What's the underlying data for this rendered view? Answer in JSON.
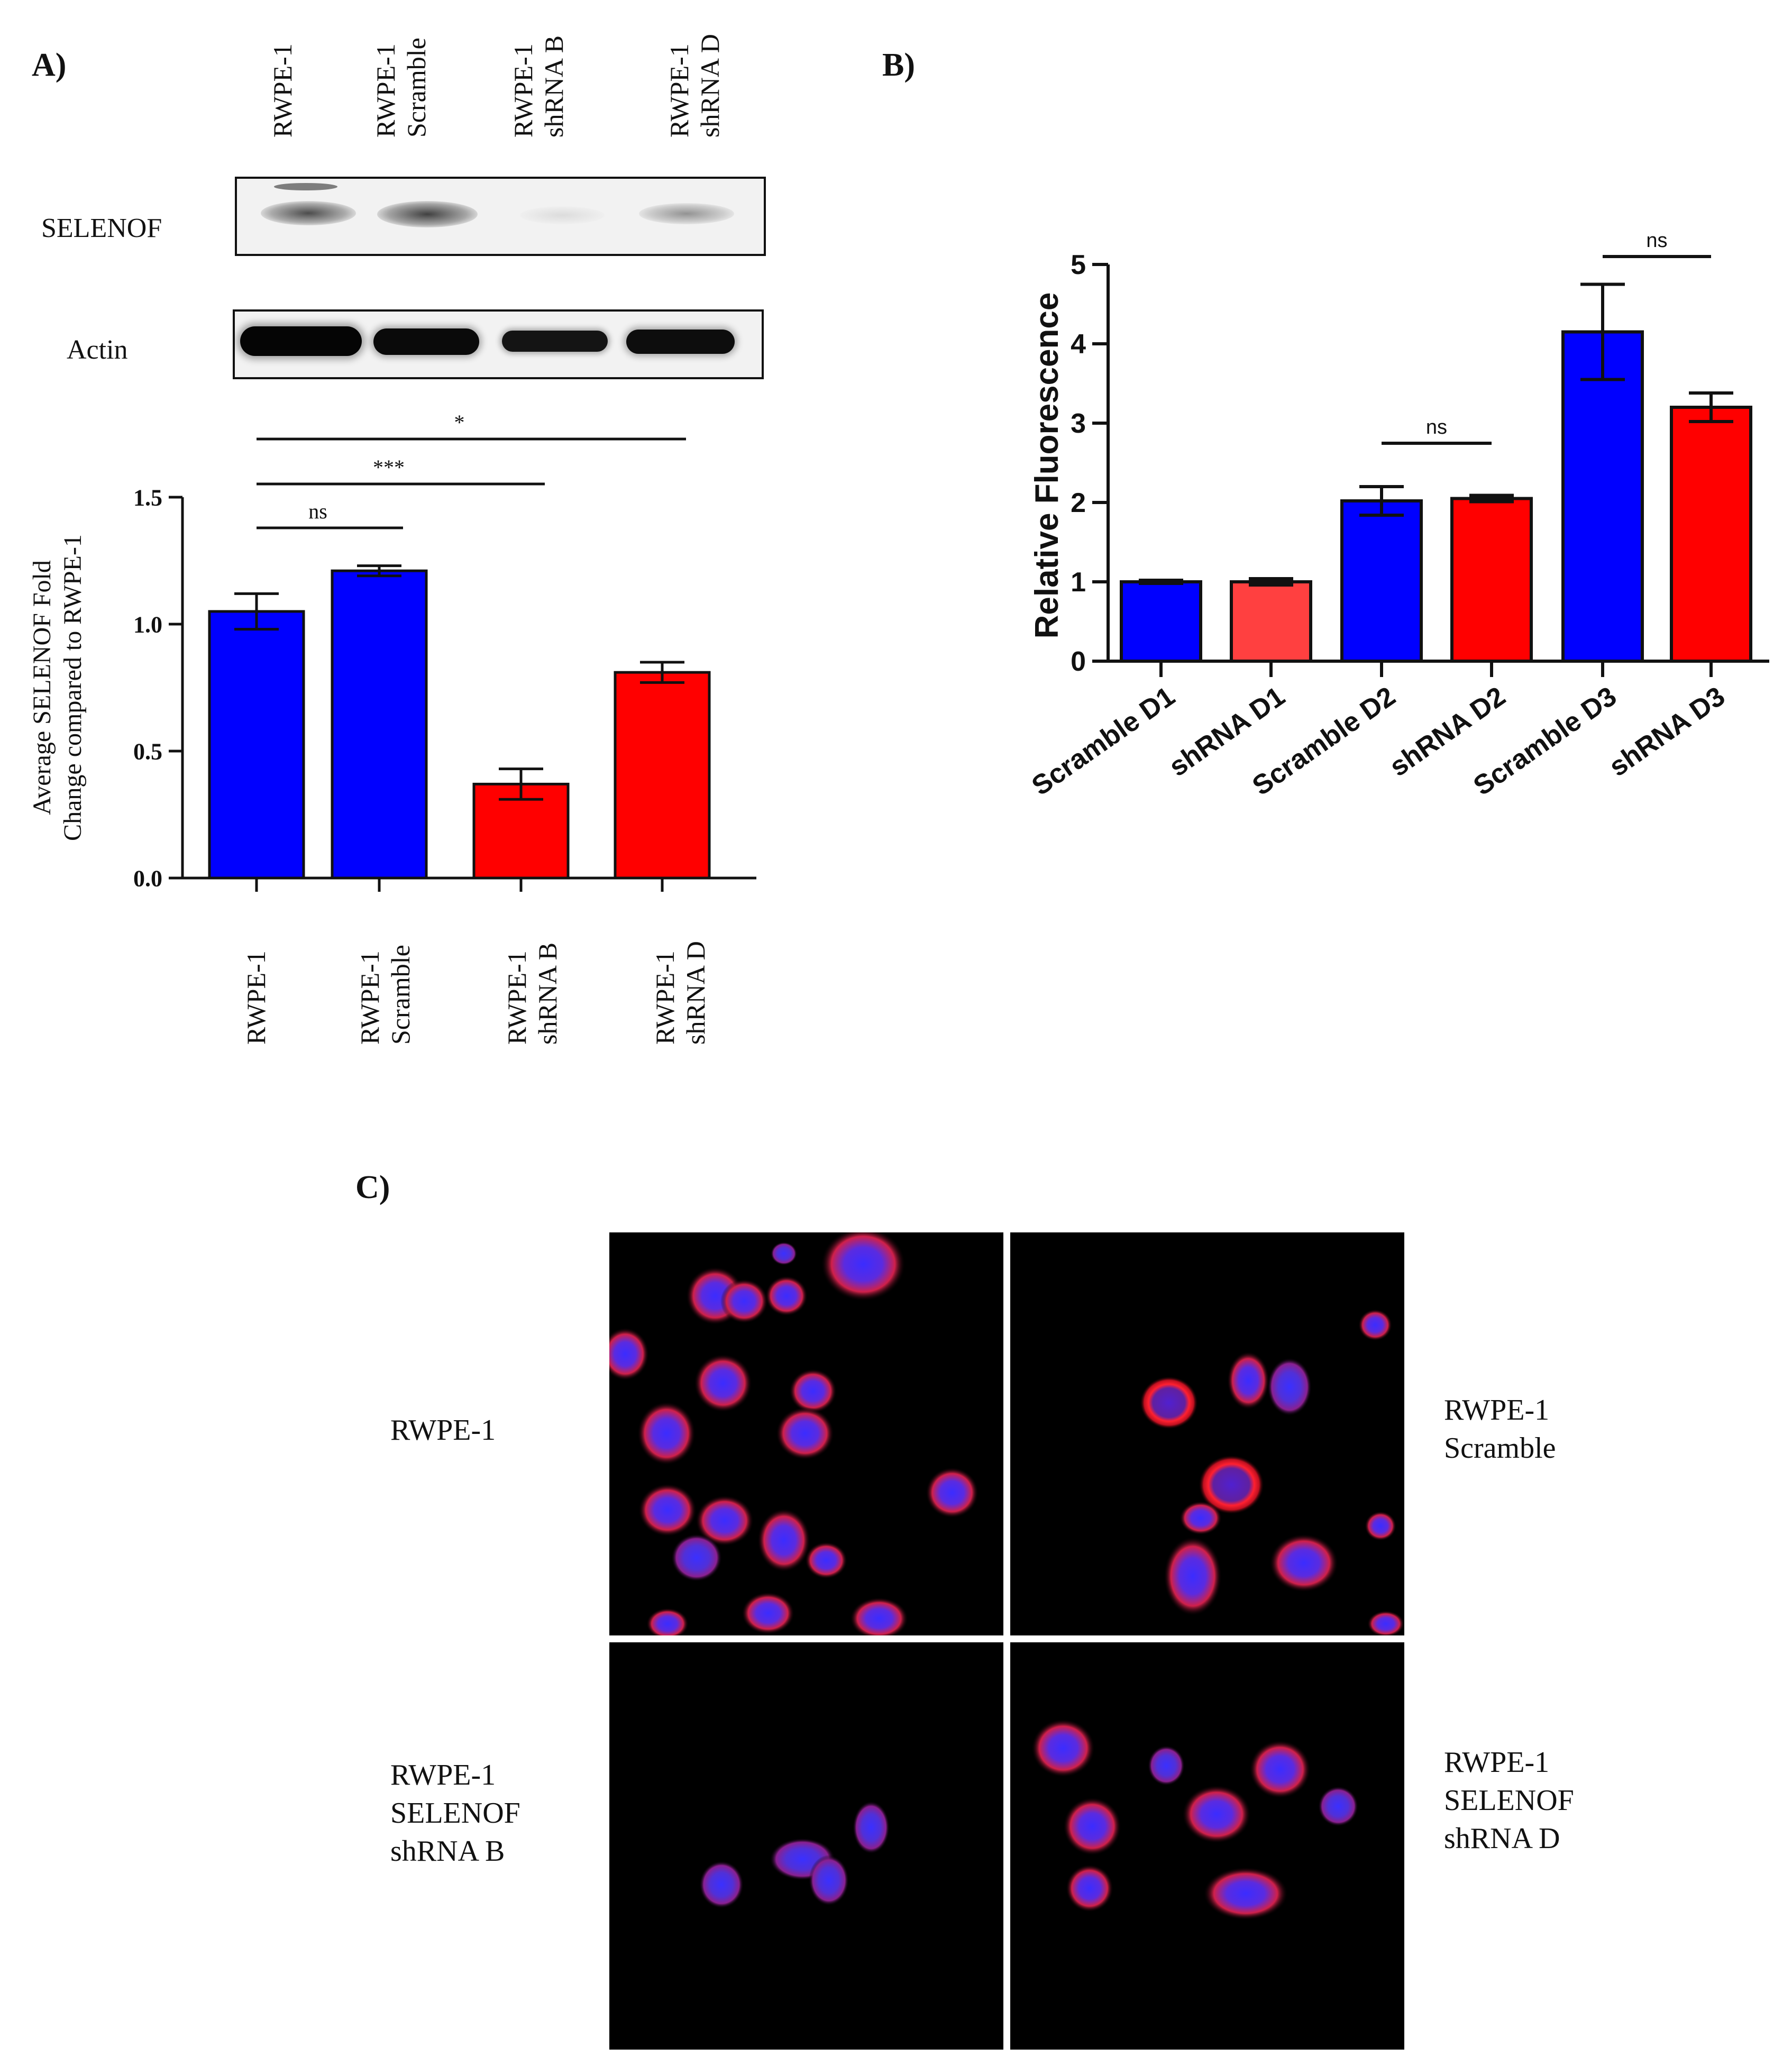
{
  "panels": {
    "a": "A)",
    "b": "B)",
    "c": "C)"
  },
  "western_blot": {
    "lanes": [
      {
        "line1": "RWPE-1",
        "line2": ""
      },
      {
        "line1": "RWPE-1",
        "line2": "Scramble"
      },
      {
        "line1": "RWPE-1",
        "line2": "shRNA  B"
      },
      {
        "line1": "RWPE-1",
        "line2": "shRNA  D"
      }
    ],
    "rows": [
      {
        "label": "SELENOF",
        "band_intensity": [
          0.75,
          0.8,
          0.12,
          0.45
        ]
      },
      {
        "label": "Actin",
        "band_intensity": [
          1.0,
          0.95,
          0.85,
          0.9
        ]
      }
    ]
  },
  "chart_data": [
    {
      "type": "bar",
      "categories": [
        "RWPE-1",
        "RWPE-1 Scramble",
        "RWPE-1 shRNA B",
        "RWPE-1 shRNA D"
      ],
      "tick_labels": [
        {
          "line1": "RWPE-1",
          "line2": ""
        },
        {
          "line1": "RWPE-1",
          "line2": "Scramble"
        },
        {
          "line1": "RWPE-1",
          "line2": "shRNA B"
        },
        {
          "line1": "RWPE-1",
          "line2": "shRNA D"
        }
      ],
      "values": [
        1.05,
        1.21,
        0.37,
        0.81
      ],
      "errors": [
        0.07,
        0.02,
        0.06,
        0.04
      ],
      "colors": [
        "#0000ff",
        "#0000ff",
        "#ff0000",
        "#ff0000"
      ],
      "ylabel_line1": "Average SELENOF Fold",
      "ylabel_line2": "Change compared to RWPE-1",
      "ylim": [
        0,
        1.5
      ],
      "yticks": [
        "0.0",
        "0.5",
        "1.0",
        "1.5"
      ],
      "grid": false,
      "significance": [
        {
          "from": 0,
          "to": 1,
          "label": "ns"
        },
        {
          "from": 0,
          "to": 2,
          "label": "***"
        },
        {
          "from": 0,
          "to": 3,
          "label": "*"
        }
      ]
    },
    {
      "type": "bar",
      "categories": [
        "Scramble D1",
        "shRNA D1",
        "Scramble D2",
        "shRNA D2",
        "Scramble D3",
        "shRNA D3"
      ],
      "values": [
        1.0,
        1.0,
        2.02,
        2.05,
        4.15,
        3.2
      ],
      "errors": [
        0.02,
        0.04,
        0.18,
        0.04,
        0.6,
        0.18
      ],
      "colors": [
        "#0000ff",
        "#ff4040",
        "#0000ff",
        "#ff0000",
        "#0000ff",
        "#ff0000"
      ],
      "ylabel": "Relative Fluorescence",
      "ylim": [
        0,
        5
      ],
      "yticks": [
        "0",
        "1",
        "2",
        "3",
        "4",
        "5"
      ],
      "grid": false,
      "significance": [
        {
          "from": 2,
          "to": 3,
          "label": "ns"
        },
        {
          "from": 4,
          "to": 5,
          "label": "ns"
        }
      ]
    }
  ],
  "microscopy": {
    "conditions": [
      {
        "label": "RWPE-1",
        "side": "left"
      },
      {
        "label": "RWPE-1\nScramble",
        "side": "right"
      },
      {
        "label": "RWPE-1\nSELENOF\nshRNA B",
        "side": "left"
      },
      {
        "label": "RWPE-1\nSELENOF\nshRNA D",
        "side": "right"
      }
    ]
  }
}
